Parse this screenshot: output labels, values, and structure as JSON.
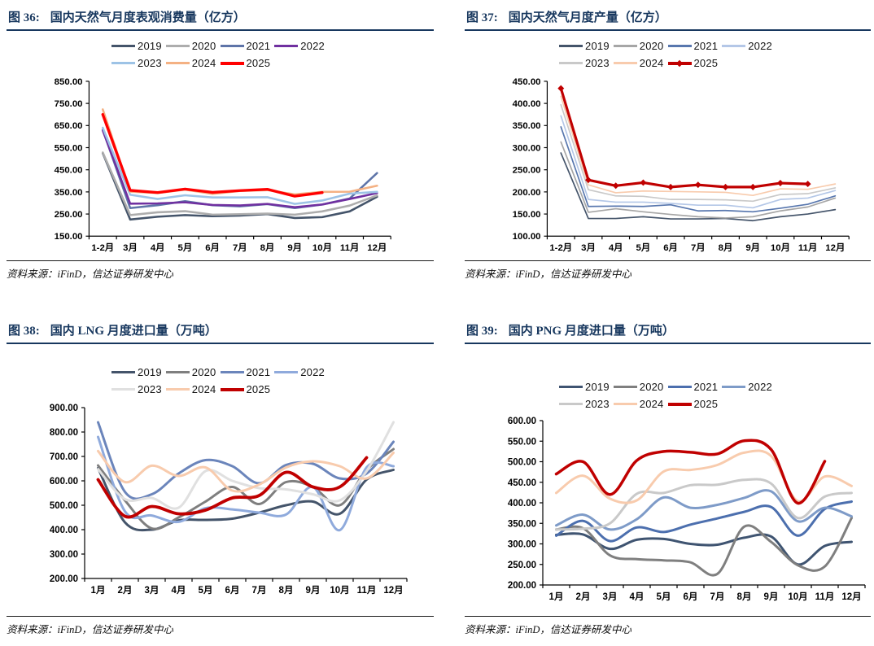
{
  "page": {
    "background": "#ffffff",
    "title_color": "#17375E",
    "axis_color": "#000000",
    "source_note": "资料来源：iFinD，信达证券研发中心"
  },
  "chart_data": [
    {
      "id": "fig36",
      "type": "line",
      "title_prefix": "图 36:",
      "title": "国内天然气月度表观消费量（亿方）",
      "source": "资料来源：iFinD，信达证券研发中心",
      "xlabel": "",
      "ylabel": "",
      "grid": false,
      "legend_position": "top-center",
      "ylim": [
        150,
        850
      ],
      "ytick_step": 100,
      "smooth": false,
      "categories": [
        "1-2月",
        "3月",
        "4月",
        "5月",
        "6月",
        "7月",
        "8月",
        "9月",
        "10月",
        "11月",
        "12月"
      ],
      "series": [
        {
          "name": "2019",
          "color": "#44546A",
          "width": 2.6,
          "values": [
            525,
            225,
            238,
            245,
            240,
            243,
            250,
            232,
            236,
            262,
            328
          ]
        },
        {
          "name": "2020",
          "color": "#ADADAD",
          "width": 2.6,
          "values": [
            528,
            245,
            258,
            263,
            247,
            249,
            252,
            247,
            262,
            288,
            334
          ]
        },
        {
          "name": "2021",
          "color": "#5E74A8",
          "width": 2.6,
          "values": [
            631,
            277,
            290,
            308,
            290,
            285,
            295,
            277,
            293,
            320,
            435
          ]
        },
        {
          "name": "2022",
          "color": "#7030A0",
          "width": 2.6,
          "values": [
            628,
            297,
            298,
            303,
            291,
            289,
            296,
            281,
            293,
            318,
            345
          ]
        },
        {
          "name": "2023",
          "color": "#9DC3E6",
          "width": 2.6,
          "values": [
            640,
            337,
            318,
            335,
            325,
            325,
            326,
            296,
            311,
            342,
            350
          ]
        },
        {
          "name": "2024",
          "color": "#F4B183",
          "width": 2.6,
          "values": [
            723,
            351,
            345,
            360,
            341,
            354,
            358,
            339,
            350,
            351,
            378
          ]
        },
        {
          "name": "2025",
          "color": "#FF0000",
          "width": 3.4,
          "values": [
            700,
            357,
            347,
            363,
            348,
            356,
            362,
            331,
            347,
            null,
            null
          ]
        }
      ]
    },
    {
      "id": "fig37",
      "type": "line",
      "title_prefix": "图 37:",
      "title": "国内天然气月度产量（亿方）",
      "source": "资料来源：iFinD，信达证券研发中心",
      "xlabel": "",
      "ylabel": "",
      "grid": false,
      "legend_position": "top-center",
      "ylim": [
        100,
        450
      ],
      "ytick_step": 50,
      "smooth": false,
      "categories": [
        "1-2月",
        "3月",
        "4月",
        "5月",
        "6月",
        "7月",
        "8月",
        "9月",
        "10月",
        "11月",
        "12月"
      ],
      "series": [
        {
          "name": "2019",
          "color": "#44546A",
          "width": 1.7,
          "values": [
            288,
            140,
            140,
            144,
            139,
            139,
            140,
            135,
            144,
            150,
            160
          ]
        },
        {
          "name": "2020",
          "color": "#A6A6A6",
          "width": 1.7,
          "values": [
            313,
            154,
            162,
            155,
            149,
            144,
            141,
            144,
            157,
            166,
            186
          ]
        },
        {
          "name": "2021",
          "color": "#5877AE",
          "width": 1.7,
          "values": [
            347,
            167,
            168,
            167,
            171,
            157,
            158,
            155,
            163,
            172,
            191
          ]
        },
        {
          "name": "2022",
          "color": "#B4C7E7",
          "width": 1.7,
          "values": [
            372,
            183,
            177,
            177,
            174,
            170,
            170,
            164,
            183,
            186,
            203
          ]
        },
        {
          "name": "2023",
          "color": "#C9C9C9",
          "width": 1.7,
          "values": [
            397,
            205,
            191,
            190,
            183,
            183,
            182,
            179,
            194,
            196,
            209
          ]
        },
        {
          "name": "2024",
          "color": "#F8CBAD",
          "width": 1.7,
          "values": [
            416,
            216,
            198,
            202,
            201,
            200,
            199,
            192,
            207,
            206,
            218
          ]
        },
        {
          "name": "2025",
          "color": "#C00000",
          "width": 3.2,
          "marker": "diamond",
          "values": [
            434,
            227,
            214,
            221,
            211,
            216,
            211,
            211,
            220,
            218,
            null
          ]
        }
      ]
    },
    {
      "id": "fig38",
      "type": "line",
      "title_prefix": "图 38:",
      "title": "国内 LNG 月度进口量（万吨）",
      "source": "资料来源：iFinD，信达证券研发中心",
      "xlabel": "",
      "ylabel": "",
      "grid": false,
      "legend_position": "top-center",
      "ylim": [
        200,
        900
      ],
      "ytick_step": 100,
      "smooth": true,
      "categories": [
        "1月",
        "2月",
        "3月",
        "4月",
        "5月",
        "6月",
        "7月",
        "8月",
        "9月",
        "10月",
        "11月",
        "12月"
      ],
      "series": [
        {
          "name": "2019",
          "color": "#44546A",
          "width": 3,
          "values": [
            652,
            430,
            400,
            438,
            440,
            445,
            470,
            500,
            515,
            465,
            605,
            645
          ]
        },
        {
          "name": "2020",
          "color": "#7F7F7F",
          "width": 3,
          "values": [
            663,
            520,
            405,
            450,
            515,
            575,
            505,
            595,
            575,
            500,
            645,
            730
          ]
        },
        {
          "name": "2021",
          "color": "#6B85BB",
          "width": 3,
          "values": [
            840,
            555,
            545,
            630,
            685,
            660,
            590,
            665,
            670,
            610,
            630,
            760
          ]
        },
        {
          "name": "2022",
          "color": "#8FAADC",
          "width": 3,
          "values": [
            780,
            475,
            458,
            432,
            488,
            483,
            470,
            462,
            575,
            398,
            655,
            660
          ]
        },
        {
          "name": "2023",
          "color": "#E0E0E0",
          "width": 3,
          "values": [
            648,
            525,
            530,
            490,
            640,
            600,
            570,
            565,
            545,
            520,
            640,
            840
          ]
        },
        {
          "name": "2024",
          "color": "#F8CBAD",
          "width": 3,
          "values": [
            722,
            595,
            662,
            620,
            655,
            560,
            585,
            655,
            680,
            660,
            610,
            715
          ]
        },
        {
          "name": "2025",
          "color": "#C00000",
          "width": 3.8,
          "values": [
            605,
            455,
            495,
            465,
            480,
            530,
            540,
            635,
            575,
            575,
            695,
            null
          ]
        }
      ]
    },
    {
      "id": "fig39",
      "type": "line",
      "title_prefix": "图 39:",
      "title": "国内 PNG 月度进口量（万吨）",
      "source": "资料来源：iFinD，信达证券研发中心",
      "xlabel": "",
      "ylabel": "",
      "grid": false,
      "legend_position": "top-center",
      "ylim": [
        200,
        600
      ],
      "ytick_step": 50,
      "smooth": true,
      "categories": [
        "1月",
        "2月",
        "3月",
        "4月",
        "5月",
        "6月",
        "7月",
        "8月",
        "9月",
        "10月",
        "11月",
        "12月"
      ],
      "series": [
        {
          "name": "2019",
          "color": "#3F5471",
          "width": 3,
          "values": [
            322,
            323,
            288,
            310,
            312,
            300,
            298,
            315,
            318,
            250,
            295,
            305
          ]
        },
        {
          "name": "2020",
          "color": "#7F7F7F",
          "width": 3,
          "values": [
            335,
            338,
            272,
            263,
            260,
            255,
            227,
            342,
            305,
            248,
            245,
            363
          ]
        },
        {
          "name": "2021",
          "color": "#4C6FAE",
          "width": 3,
          "values": [
            320,
            356,
            307,
            340,
            329,
            347,
            362,
            378,
            390,
            320,
            385,
            403
          ]
        },
        {
          "name": "2022",
          "color": "#7E9BC8",
          "width": 3,
          "values": [
            345,
            371,
            335,
            360,
            413,
            388,
            395,
            412,
            428,
            355,
            388,
            367
          ]
        },
        {
          "name": "2023",
          "color": "#C9C9C9",
          "width": 3,
          "values": [
            335,
            337,
            350,
            422,
            424,
            443,
            444,
            456,
            447,
            363,
            415,
            424
          ]
        },
        {
          "name": "2024",
          "color": "#F8CBAD",
          "width": 3,
          "values": [
            424,
            466,
            410,
            406,
            476,
            480,
            492,
            522,
            514,
            404,
            464,
            441
          ]
        },
        {
          "name": "2025",
          "color": "#C00000",
          "width": 3.5,
          "values": [
            470,
            500,
            420,
            503,
            525,
            523,
            519,
            551,
            530,
            399,
            501,
            null
          ]
        }
      ]
    }
  ]
}
